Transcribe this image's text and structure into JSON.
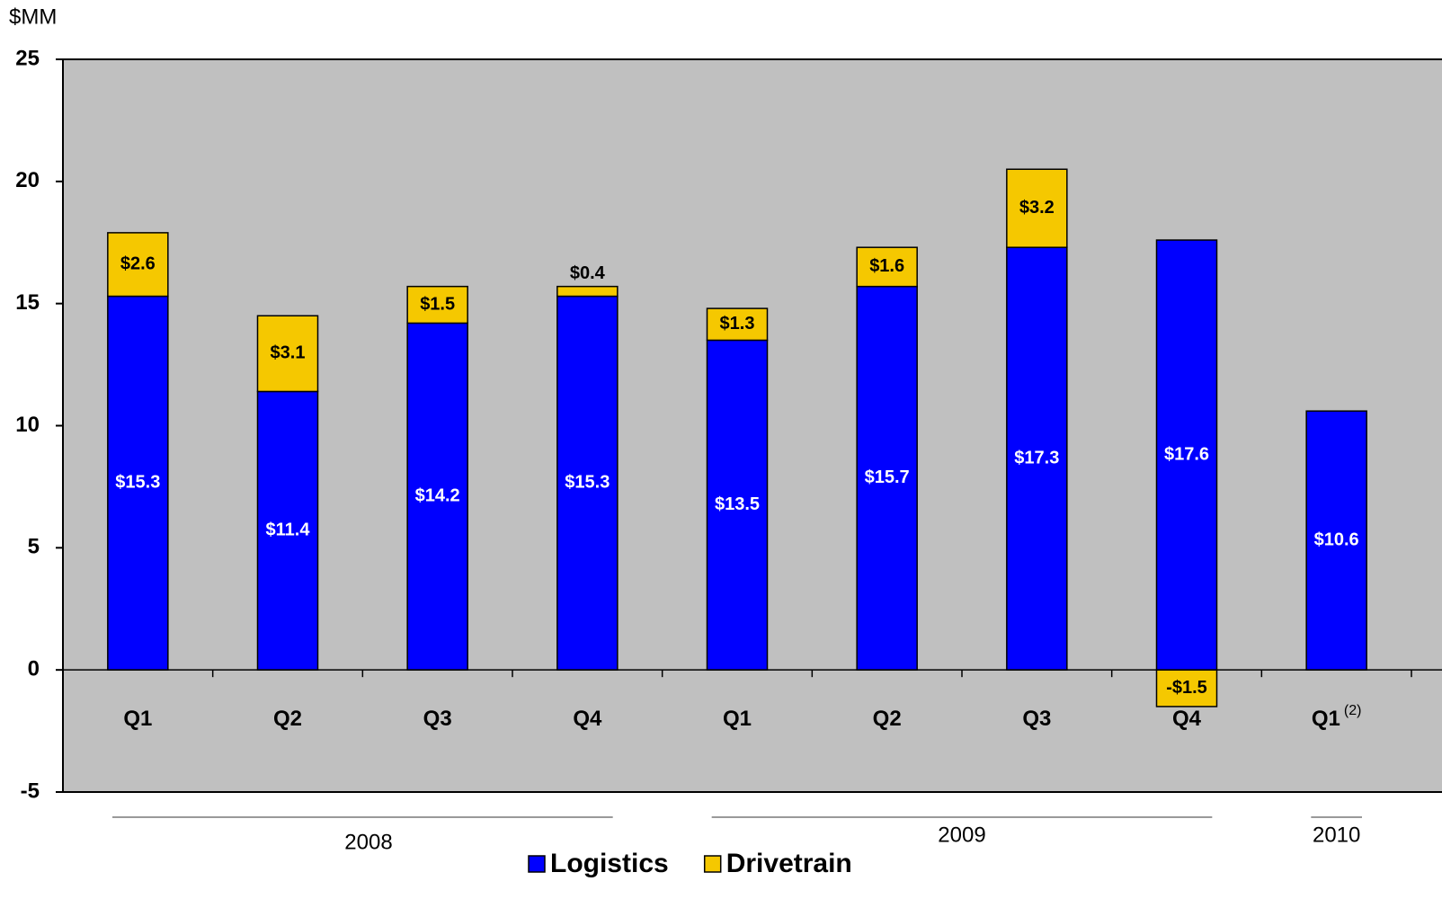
{
  "chart_data": {
    "type": "stacked_bar",
    "y_axis_label": "$MM",
    "categories": [
      "Q1",
      "Q2",
      "Q3",
      "Q4",
      "Q1",
      "Q2",
      "Q3",
      "Q4",
      "Q1"
    ],
    "category_notes": [
      null,
      null,
      null,
      null,
      null,
      null,
      null,
      null,
      "(2)"
    ],
    "groups": [
      {
        "label": "2008",
        "size": 4
      },
      {
        "label": "2009",
        "size": 4
      },
      {
        "label": "2010",
        "size": 1
      }
    ],
    "series": [
      {
        "name": "Logistics",
        "color": "#0000ff",
        "label_color": "#ffffff",
        "values": [
          15.3,
          11.4,
          14.2,
          15.3,
          13.5,
          15.7,
          17.3,
          17.6,
          10.6
        ],
        "value_labels": [
          "$15.3",
          "$11.4",
          "$14.2",
          "$15.3",
          "$13.5",
          "$15.7",
          "$17.3",
          "$17.6",
          "$10.6"
        ]
      },
      {
        "name": "Drivetrain",
        "color": "#f5c800",
        "label_color": "#000000",
        "values": [
          2.6,
          3.1,
          1.5,
          0.4,
          1.3,
          1.6,
          3.2,
          -1.5,
          null
        ],
        "value_labels": [
          "$2.6",
          "$3.1",
          "$1.5",
          "$0.4",
          "$1.3",
          "$1.6",
          "$3.2",
          "-$1.5",
          null
        ]
      }
    ],
    "ylim": [
      -5,
      25
    ],
    "yticks": [
      -5,
      0,
      5,
      10,
      15,
      20,
      25
    ],
    "plot_background": "#c0c0c0"
  }
}
